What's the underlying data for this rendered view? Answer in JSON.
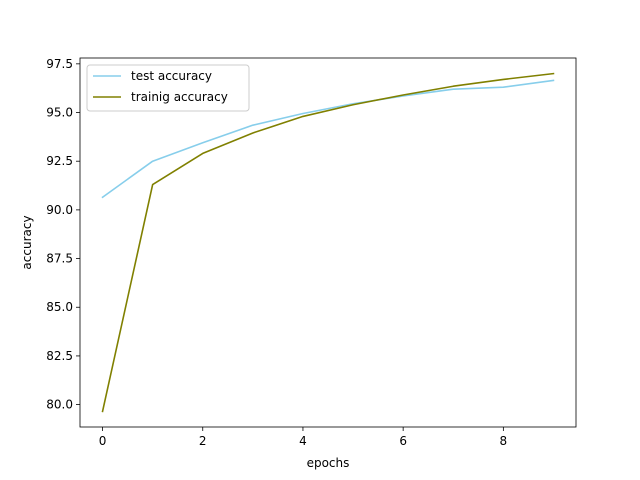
{
  "chart_data": {
    "type": "line",
    "xlabel": "epochs",
    "ylabel": "accuracy",
    "xlim": [
      -0.45,
      9.45
    ],
    "ylim": [
      78.85,
      97.8
    ],
    "xticks": [
      0,
      2,
      4,
      6,
      8
    ],
    "yticks": [
      80.0,
      82.5,
      85.0,
      87.5,
      90.0,
      92.5,
      95.0,
      97.5
    ],
    "xtick_labels": [
      "0",
      "2",
      "4",
      "6",
      "8"
    ],
    "ytick_labels": [
      "80.0",
      "82.5",
      "85.0",
      "87.5",
      "90.0",
      "92.5",
      "95.0",
      "97.5"
    ],
    "grid": false,
    "legend_position": "upper-left",
    "x": [
      0,
      1,
      2,
      3,
      4,
      5,
      6,
      7,
      8,
      9
    ],
    "series": [
      {
        "name": "test accuracy",
        "color": "#87ceeb",
        "values": [
          90.65,
          92.5,
          93.45,
          94.35,
          94.95,
          95.45,
          95.85,
          96.2,
          96.3,
          96.65
        ]
      },
      {
        "name": "trainig accuracy",
        "color": "#808000",
        "values": [
          79.65,
          91.3,
          92.9,
          93.95,
          94.8,
          95.4,
          95.9,
          96.35,
          96.7,
          97.0
        ]
      }
    ]
  }
}
